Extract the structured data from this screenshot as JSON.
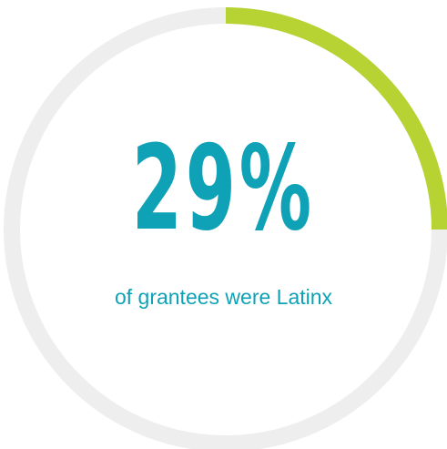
{
  "chart_data": {
    "type": "pie",
    "values": [
      29,
      71
    ],
    "value_percent": 29,
    "value_label": "29%",
    "caption": "of grantees were Latinx"
  },
  "colors": {
    "accent_fill": "#b6d233",
    "track": "#eeeeee",
    "text": "#0fa2b6"
  }
}
